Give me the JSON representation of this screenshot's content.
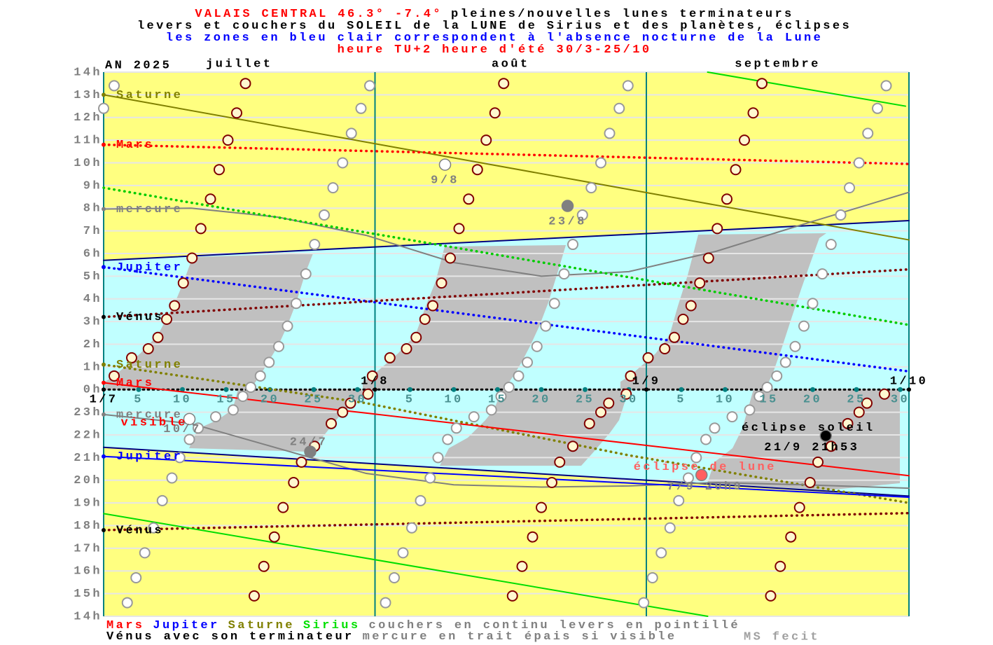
{
  "chart_data": {
    "type": "ephemeris",
    "title_lines": [
      [
        {
          "text": "VALAIS CENTRAL 46.3° -7.4°",
          "color": "#ff0000"
        },
        {
          "text": "pleines/nouvelles lunes terminateurs",
          "color": "#000000"
        }
      ],
      [
        {
          "text": "levers et couchers du SOLEIL de la LUNE de Sirius et des planètes, éclipses",
          "color": "#000000"
        }
      ],
      [
        {
          "text": "les zones en bleu clair correspondent à l'absence nocturne de la Lune",
          "color": "#0000ff"
        }
      ],
      [
        {
          "text": "heure TU+2 heure d'été 30/3-25/10",
          "color": "#ff0000"
        }
      ]
    ],
    "year_label": "AN 2025",
    "months": [
      "juillet",
      "août",
      "septembre"
    ],
    "month_starts": [
      {
        "value": 0,
        "label": "1/7"
      },
      {
        "value": 31,
        "label": "1/8"
      },
      {
        "value": 62,
        "label": "1/9"
      },
      {
        "value": 92,
        "label": "1/10"
      }
    ],
    "xlim": [
      0,
      92
    ],
    "xticks": [
      {
        "value": 4,
        "label": "5"
      },
      {
        "value": 9,
        "label": "10"
      },
      {
        "value": 14,
        "label": "15"
      },
      {
        "value": 19,
        "label": "20"
      },
      {
        "value": 24,
        "label": "25"
      },
      {
        "value": 29,
        "label": "30"
      },
      {
        "value": 35,
        "label": "5"
      },
      {
        "value": 40,
        "label": "10"
      },
      {
        "value": 45,
        "label": "15"
      },
      {
        "value": 50,
        "label": "20"
      },
      {
        "value": 55,
        "label": "25"
      },
      {
        "value": 60,
        "label": "30"
      },
      {
        "value": 66,
        "label": "5"
      },
      {
        "value": 71,
        "label": "10"
      },
      {
        "value": 76,
        "label": "15"
      },
      {
        "value": 81,
        "label": "20"
      },
      {
        "value": 86,
        "label": "25"
      },
      {
        "value": 91,
        "label": "30"
      }
    ],
    "ylim": [
      -10,
      14
    ],
    "yticks": [
      {
        "value": 14,
        "label": "14h"
      },
      {
        "value": 13,
        "label": "13h"
      },
      {
        "value": 12,
        "label": "12h"
      },
      {
        "value": 11,
        "label": "11h"
      },
      {
        "value": 10,
        "label": "10h"
      },
      {
        "value": 9,
        "label": "9h"
      },
      {
        "value": 8,
        "label": "8h"
      },
      {
        "value": 7,
        "label": "7h"
      },
      {
        "value": 6,
        "label": "6h"
      },
      {
        "value": 5,
        "label": "5h"
      },
      {
        "value": 4,
        "label": "4h"
      },
      {
        "value": 3,
        "label": "3h"
      },
      {
        "value": 2,
        "label": "2h"
      },
      {
        "value": 1,
        "label": "1h"
      },
      {
        "value": 0,
        "label": "0h"
      },
      {
        "value": -1,
        "label": "23h"
      },
      {
        "value": -2,
        "label": "22h"
      },
      {
        "value": -3,
        "label": "21h"
      },
      {
        "value": -4,
        "label": "20h"
      },
      {
        "value": -5,
        "label": "19h"
      },
      {
        "value": -6,
        "label": "18h"
      },
      {
        "value": -7,
        "label": "17h"
      },
      {
        "value": -8,
        "label": "16h"
      },
      {
        "value": -9,
        "label": "15h"
      },
      {
        "value": -10,
        "label": "14h"
      }
    ],
    "grid": true,
    "sunrise": {
      "color": "#000080",
      "x": [
        0,
        92
      ],
      "values": [
        5.7,
        7.45
      ]
    },
    "sunset": {
      "color": "#000080",
      "x": [
        0,
        92
      ],
      "values": [
        -2.55,
        -4.7
      ]
    },
    "series": [
      {
        "name": "Saturne",
        "color": "#808000",
        "dashed": false,
        "x": [
          0,
          92
        ],
        "values": [
          13,
          6.6
        ]
      },
      {
        "name": "Mars",
        "color": "#ff0000",
        "dashed": true,
        "x": [
          0,
          92
        ],
        "values": [
          10.8,
          9.95
        ]
      },
      {
        "name": "mercure",
        "color": "#808080",
        "dashed": false,
        "x": [
          0,
          10,
          20,
          30,
          40,
          50,
          60,
          70,
          80,
          92
        ],
        "values": [
          7.96,
          8.0,
          7.6,
          6.8,
          5.6,
          5.0,
          5.2,
          6.1,
          7.3,
          8.7
        ]
      },
      {
        "name": "Jupiter",
        "color": "#0000ff",
        "dashed": true,
        "x": [
          0,
          92
        ],
        "values": [
          5.4,
          0.8
        ]
      },
      {
        "name": "Vénus",
        "color": "#800000",
        "label_color": "#000000",
        "dashed": true,
        "x": [
          0,
          92
        ],
        "values": [
          3.2,
          5.3
        ]
      },
      {
        "name": "Saturne",
        "color": "#808000",
        "dashed": true,
        "x": [
          0,
          30,
          60,
          92
        ],
        "values": [
          1.1,
          -0.6,
          -2.9,
          -5.0
        ]
      },
      {
        "name": "Mars",
        "color": "#ff0000",
        "dashed": false,
        "x": [
          0,
          92
        ],
        "values": [
          0.3,
          -3.8
        ]
      },
      {
        "name": "mercure",
        "color": "#808080",
        "dashed": false,
        "x": [
          0,
          10,
          20,
          30,
          40,
          50,
          60,
          70,
          80,
          92
        ],
        "values": [
          -1.1,
          -1.5,
          -2.6,
          -3.7,
          -4.2,
          -4.3,
          -4.25,
          -4.1,
          -4.2,
          -4.35
        ]
      },
      {
        "name": "Jupiter",
        "color": "#0000ff",
        "dashed": false,
        "x": [
          0,
          92
        ],
        "values": [
          -2.95,
          -4.75
        ]
      },
      {
        "name": "Vénus",
        "color": "#800000",
        "label_color": "#000000",
        "dashed": true,
        "x": [
          0,
          92
        ],
        "values": [
          -6.2,
          -5.45
        ]
      },
      {
        "color": "#00cc00",
        "dashed": true,
        "x": [
          0,
          92
        ],
        "values": [
          8.9,
          2.85
        ]
      },
      {
        "color": "#00dd00",
        "dashed": false,
        "x": [
          0,
          69,
          69,
          69,
          91.6
        ],
        "values": [
          -5.47,
          -10,
          null,
          14,
          12.5
        ]
      }
    ],
    "annotations": [
      {
        "text": "visible",
        "x": 1,
        "y": -1.45,
        "color": "#ff0000"
      }
    ],
    "moon_sets": {
      "color": "#800000",
      "x": [
        1.2,
        3.2,
        5.1,
        6.2,
        7.2,
        8.1,
        9.1,
        10.1,
        11.1,
        12.2,
        13.2,
        14.2,
        15.2,
        16.2,
        17.2,
        18.3,
        19.5,
        20.5,
        21.7,
        22.6,
        24.1,
        26,
        27.3,
        28.2,
        30.2,
        30.7,
        32.7,
        34.6,
        35.7,
        36.7,
        37.6,
        38.6,
        39.6,
        40.6,
        41.7,
        42.7,
        43.7,
        44.7,
        45.7,
        46.7,
        47.8,
        49,
        50,
        51.2,
        52.1,
        53.6,
        55.5,
        56.8,
        57.7,
        59.7,
        60.2,
        62.2,
        64.1,
        65.2,
        66.2,
        67.1,
        68.1,
        69.1,
        70.1,
        71.2,
        72.2,
        73.2,
        74.2,
        75.2,
        76.2,
        77.3,
        78.5,
        79.5,
        80.7,
        81.6,
        83.1,
        85,
        86.3,
        87.2,
        89.2
      ],
      "values": [
        0.6,
        1.4,
        1.8,
        2.3,
        3.1,
        3.7,
        4.7,
        5.8,
        7.1,
        8.4,
        9.7,
        11,
        12.2,
        13.5,
        -9.1,
        -7.8,
        -6.5,
        -5.2,
        -4.1,
        -3.2,
        -2.5,
        -1.5,
        -1,
        -0.6,
        -0.2,
        0.6,
        1.4,
        1.8,
        2.3,
        3.1,
        3.7,
        4.7,
        5.8,
        7.1,
        8.4,
        9.7,
        11,
        12.2,
        13.5,
        -9.1,
        -7.8,
        -6.5,
        -5.2,
        -4.1,
        -3.2,
        -2.5,
        -1.5,
        -1,
        -0.6,
        -0.2,
        0.6,
        1.4,
        1.8,
        2.3,
        3.1,
        3.7,
        4.7,
        5.8,
        7.1,
        8.4,
        9.7,
        11,
        12.2,
        13.5,
        -9.1,
        -7.8,
        -6.5,
        -5.2,
        -4.1,
        -3.2,
        -2.5,
        -1.5,
        -1,
        -0.6,
        -0.2
      ]
    },
    "moon_rises": {
      "color": "#999999",
      "x": [
        0,
        1.2,
        2.7,
        3.7,
        4.7,
        5.7,
        6.7,
        7.8,
        8.7,
        9.8,
        10.8,
        12.8,
        14.8,
        15.9,
        16.8,
        17.9,
        18.9,
        20,
        21,
        22,
        23.1,
        24.1,
        25.2,
        26.2,
        27.3,
        28.3,
        29.4,
        30.4,
        32.2,
        33.2,
        34.2,
        35.2,
        36.2,
        37.3,
        38.2,
        39.3,
        40.3,
        42.3,
        44.3,
        45.4,
        46.3,
        47.4,
        48.4,
        49.5,
        50.5,
        51.5,
        52.6,
        53.6,
        54.7,
        55.7,
        56.8,
        57.8,
        58.9,
        59.9,
        61.7,
        62.7,
        63.7,
        64.7,
        65.7,
        66.8,
        67.7,
        68.8,
        69.8,
        71.8,
        73.8,
        74.9,
        75.8,
        76.9,
        77.9,
        79,
        80,
        81,
        82.1,
        83.1,
        84.2,
        85.2,
        86.3,
        87.3,
        88.4,
        89.4
      ],
      "values": [
        12.4,
        13.4,
        -9.4,
        -8.3,
        -7.2,
        -6.1,
        -4.9,
        -3.9,
        -3,
        -2.2,
        -1.7,
        -1.2,
        -0.9,
        -0.3,
        0.1,
        0.6,
        1.2,
        1.9,
        2.8,
        3.8,
        5.1,
        6.4,
        7.7,
        8.9,
        10,
        11.3,
        12.4,
        13.4,
        -9.4,
        -8.3,
        -7.2,
        -6.1,
        -4.9,
        -3.9,
        -3,
        -2.2,
        -1.7,
        -1.2,
        -0.9,
        -0.3,
        0.1,
        0.6,
        1.2,
        1.9,
        2.8,
        3.8,
        5.1,
        6.4,
        7.7,
        8.9,
        10,
        11.3,
        12.4,
        13.4,
        -9.4,
        -8.3,
        -7.2,
        -6.1,
        -4.9,
        -3.9,
        -3,
        -2.2,
        -1.7,
        -1.2,
        -0.9,
        -0.3,
        0.1,
        0.6,
        1.2,
        1.9,
        2.8,
        3.8,
        5.1,
        6.4,
        7.7,
        8.9,
        10,
        11.3,
        12.4,
        13.4
      ]
    },
    "events": [
      {
        "label": "10/7",
        "x": 9.8,
        "y": -1.3,
        "color": "#ffffff"
      },
      {
        "label": "24/7",
        "x": 23.6,
        "y": -2.74,
        "color": "#808080"
      },
      {
        "label": "9/8",
        "x": 39.0,
        "y": 9.92,
        "color": "#ffffff"
      },
      {
        "label": "23/8",
        "x": 53.0,
        "y": 8.1,
        "color": "#808080"
      },
      {
        "label": "éclipse de lune",
        "date": "7/9 20h9",
        "x": 68.3,
        "y": -3.77,
        "color": "#ff6060",
        "label_color": "#ff6060",
        "date_color": "#808080"
      },
      {
        "label": "éclipse soleil",
        "date": "21/9 21h53",
        "x": 82.5,
        "y": -2.04,
        "color": "#000000",
        "label_color": "#000000",
        "date_color": "#000000"
      }
    ],
    "footer_lines": [
      [
        {
          "text": "Mars",
          "color": "#ff0000"
        },
        {
          "text": "Jupiter",
          "color": "#0000ff"
        },
        {
          "text": "Saturne",
          "color": "#808000"
        },
        {
          "text": "Sirius",
          "color": "#00e000"
        },
        {
          "text": "couchers en continu levers en pointillé",
          "color": "#808080"
        }
      ],
      [
        {
          "text": "Vénus avec son terminateur",
          "color": "#000000"
        },
        {
          "text": "mercure en trait épais si visible",
          "color": "#808080"
        }
      ]
    ],
    "signature": "MS fecit"
  }
}
